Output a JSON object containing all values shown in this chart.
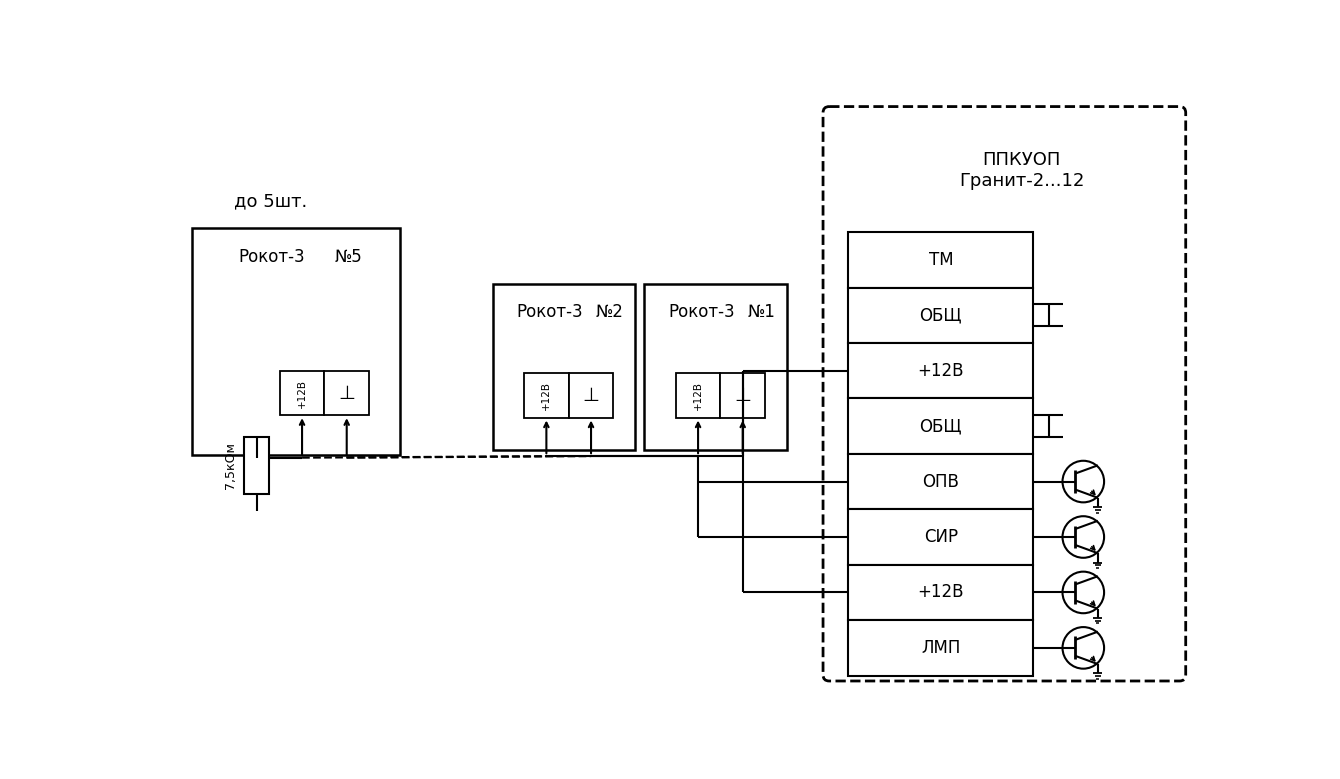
{
  "bg": "#ffffff",
  "lc": "#000000",
  "fig_w": 13.4,
  "fig_h": 7.79,
  "ppkuop_rows": [
    "ТМ",
    "ОБЩ",
    "+12В",
    "ОБЩ",
    "ОПВ",
    "СИР",
    "+12В",
    "ЛМП"
  ],
  "do5sht": "до 5шт.",
  "ppkuop_title": "ППКУОП\nГранит-2...12"
}
